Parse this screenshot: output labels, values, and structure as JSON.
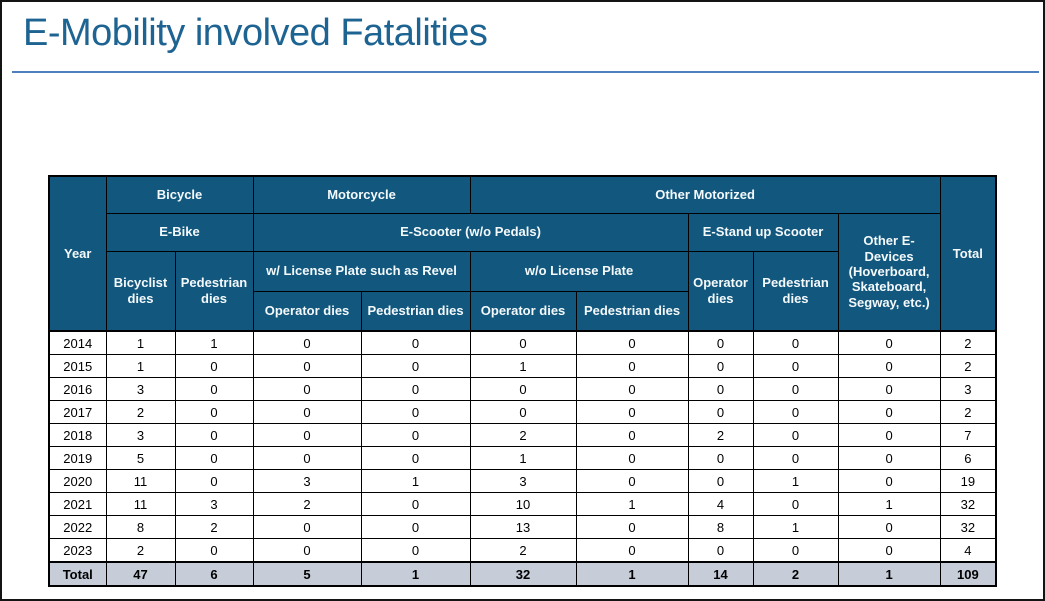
{
  "slide": {
    "title": "E-Mobility involved Fatalities"
  },
  "colors": {
    "header_bg": "#12577D",
    "header_text": "#F4F9FC",
    "total_row_bg": "#C6CDD9",
    "title_text": "#1E6492",
    "rule": "#4E80BD",
    "border": "#000000"
  },
  "table": {
    "header": {
      "year": "Year",
      "bicycle": "Bicycle",
      "motorcycle": "Motorcycle",
      "other_motorized": "Other Motorized",
      "total": "Total",
      "e_bike": "E-Bike",
      "e_scooter": "E-Scooter (w/o Pedals)",
      "e_stand_up_scooter": "E-Stand up Scooter",
      "other_e_devices": "Other E-Devices (Hoverboard, Skateboard, Segway, etc.)",
      "bicyclist_dies": "Bicyclist dies",
      "pedestrian_dies": "Pedestrian dies",
      "w_license_plate": "w/ License Plate such as Revel",
      "wo_license_plate": "w/o License Plate",
      "operator_dies": "Operator dies"
    },
    "rows": [
      {
        "year": "2014",
        "values": [
          "1",
          "1",
          "0",
          "0",
          "0",
          "0",
          "0",
          "0",
          "0"
        ],
        "total": "2"
      },
      {
        "year": "2015",
        "values": [
          "1",
          "0",
          "0",
          "0",
          "1",
          "0",
          "0",
          "0",
          "0"
        ],
        "total": "2"
      },
      {
        "year": "2016",
        "values": [
          "3",
          "0",
          "0",
          "0",
          "0",
          "0",
          "0",
          "0",
          "0"
        ],
        "total": "3"
      },
      {
        "year": "2017",
        "values": [
          "2",
          "0",
          "0",
          "0",
          "0",
          "0",
          "0",
          "0",
          "0"
        ],
        "total": "2"
      },
      {
        "year": "2018",
        "values": [
          "3",
          "0",
          "0",
          "0",
          "2",
          "0",
          "2",
          "0",
          "0"
        ],
        "total": "7"
      },
      {
        "year": "2019",
        "values": [
          "5",
          "0",
          "0",
          "0",
          "1",
          "0",
          "0",
          "0",
          "0"
        ],
        "total": "6"
      },
      {
        "year": "2020",
        "values": [
          "11",
          "0",
          "3",
          "1",
          "3",
          "0",
          "0",
          "1",
          "0"
        ],
        "total": "19"
      },
      {
        "year": "2021",
        "values": [
          "11",
          "3",
          "2",
          "0",
          "10",
          "1",
          "4",
          "0",
          "1"
        ],
        "total": "32"
      },
      {
        "year": "2022",
        "values": [
          "8",
          "2",
          "0",
          "0",
          "13",
          "0",
          "8",
          "1",
          "0"
        ],
        "total": "32"
      },
      {
        "year": "2023",
        "values": [
          "2",
          "0",
          "0",
          "0",
          "2",
          "0",
          "0",
          "0",
          "0"
        ],
        "total": "4"
      }
    ],
    "total_row": {
      "label": "Total",
      "values": [
        "47",
        "6",
        "5",
        "1",
        "32",
        "1",
        "14",
        "2",
        "1"
      ],
      "total": "109"
    }
  }
}
